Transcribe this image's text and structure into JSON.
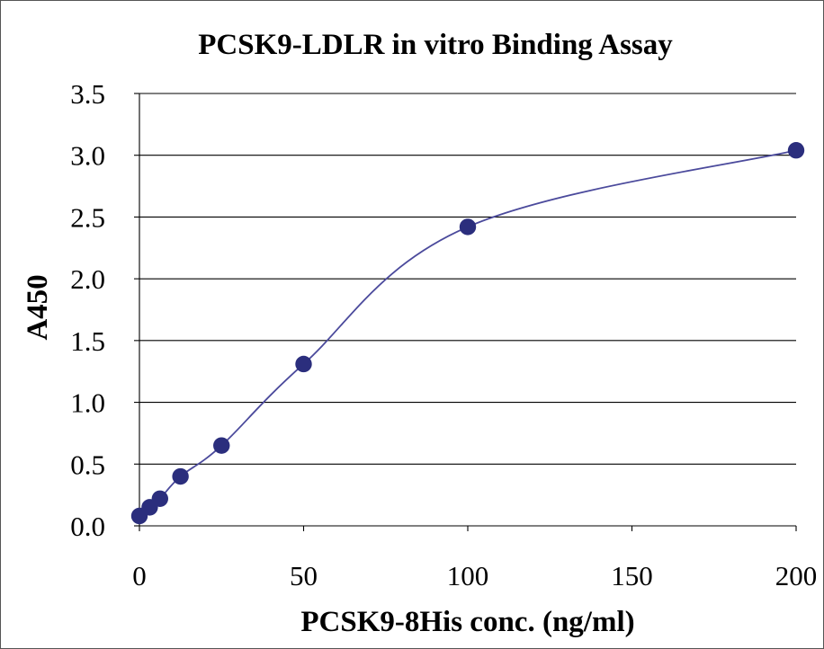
{
  "chart_data": {
    "type": "scatter",
    "title": "PCSK9-LDLR in vitro Binding Assay",
    "xlabel": "PCSK9-8His conc. (ng/ml)",
    "ylabel": "A450",
    "xlim": [
      0,
      200
    ],
    "ylim": [
      0,
      3.5
    ],
    "xticks": [
      "0",
      "50",
      "100",
      "150",
      "200"
    ],
    "yticks": [
      "0.0",
      "0.5",
      "1.0",
      "1.5",
      "2.0",
      "2.5",
      "3.0",
      "3.5"
    ],
    "grid": "horizontal",
    "series": [
      {
        "x": [
          0,
          3.125,
          6.25,
          12.5,
          25,
          50,
          100,
          200
        ],
        "y": [
          0.08,
          0.15,
          0.22,
          0.4,
          0.65,
          1.31,
          2.42,
          3.04
        ],
        "color": "#2b2e7d",
        "line_color": "#4b4a9c",
        "smoothed_line": true
      }
    ]
  }
}
